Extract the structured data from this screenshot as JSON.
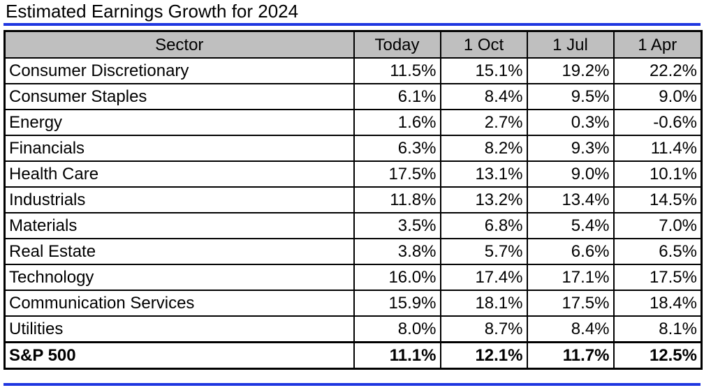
{
  "title": "Estimated Earnings Growth for 2024",
  "chart_data": {
    "type": "table",
    "title": "Estimated Earnings Growth for 2024",
    "columns": [
      "Sector",
      "Today",
      "1 Oct",
      "1 Jul",
      "1 Apr"
    ],
    "rows": [
      {
        "sector": "Consumer Discretionary",
        "values": [
          "11.5%",
          "15.1%",
          "19.2%",
          "22.2%"
        ]
      },
      {
        "sector": "Consumer Staples",
        "values": [
          "6.1%",
          "8.4%",
          "9.5%",
          "9.0%"
        ]
      },
      {
        "sector": "Energy",
        "values": [
          "1.6%",
          "2.7%",
          "0.3%",
          "-0.6%"
        ]
      },
      {
        "sector": "Financials",
        "values": [
          "6.3%",
          "8.2%",
          "9.3%",
          "11.4%"
        ]
      },
      {
        "sector": "Health Care",
        "values": [
          "17.5%",
          "13.1%",
          "9.0%",
          "10.1%"
        ]
      },
      {
        "sector": "Industrials",
        "values": [
          "11.8%",
          "13.2%",
          "13.4%",
          "14.5%"
        ]
      },
      {
        "sector": "Materials",
        "values": [
          "3.5%",
          "6.8%",
          "5.4%",
          "7.0%"
        ]
      },
      {
        "sector": "Real Estate",
        "values": [
          "3.8%",
          "5.7%",
          "6.6%",
          "6.5%"
        ]
      },
      {
        "sector": "Technology",
        "values": [
          "16.0%",
          "17.4%",
          "17.1%",
          "17.5%"
        ]
      },
      {
        "sector": "Communication Services",
        "values": [
          "15.9%",
          "18.1%",
          "17.5%",
          "18.4%"
        ]
      },
      {
        "sector": "Utilities",
        "values": [
          "8.0%",
          "8.7%",
          "8.4%",
          "8.1%"
        ]
      }
    ],
    "total": {
      "sector": "S&P 500",
      "values": [
        "11.1%",
        "12.1%",
        "11.7%",
        "12.5%"
      ]
    }
  },
  "colors": {
    "rule": "#1f36e0",
    "header_bg": "#bfbfbf"
  }
}
